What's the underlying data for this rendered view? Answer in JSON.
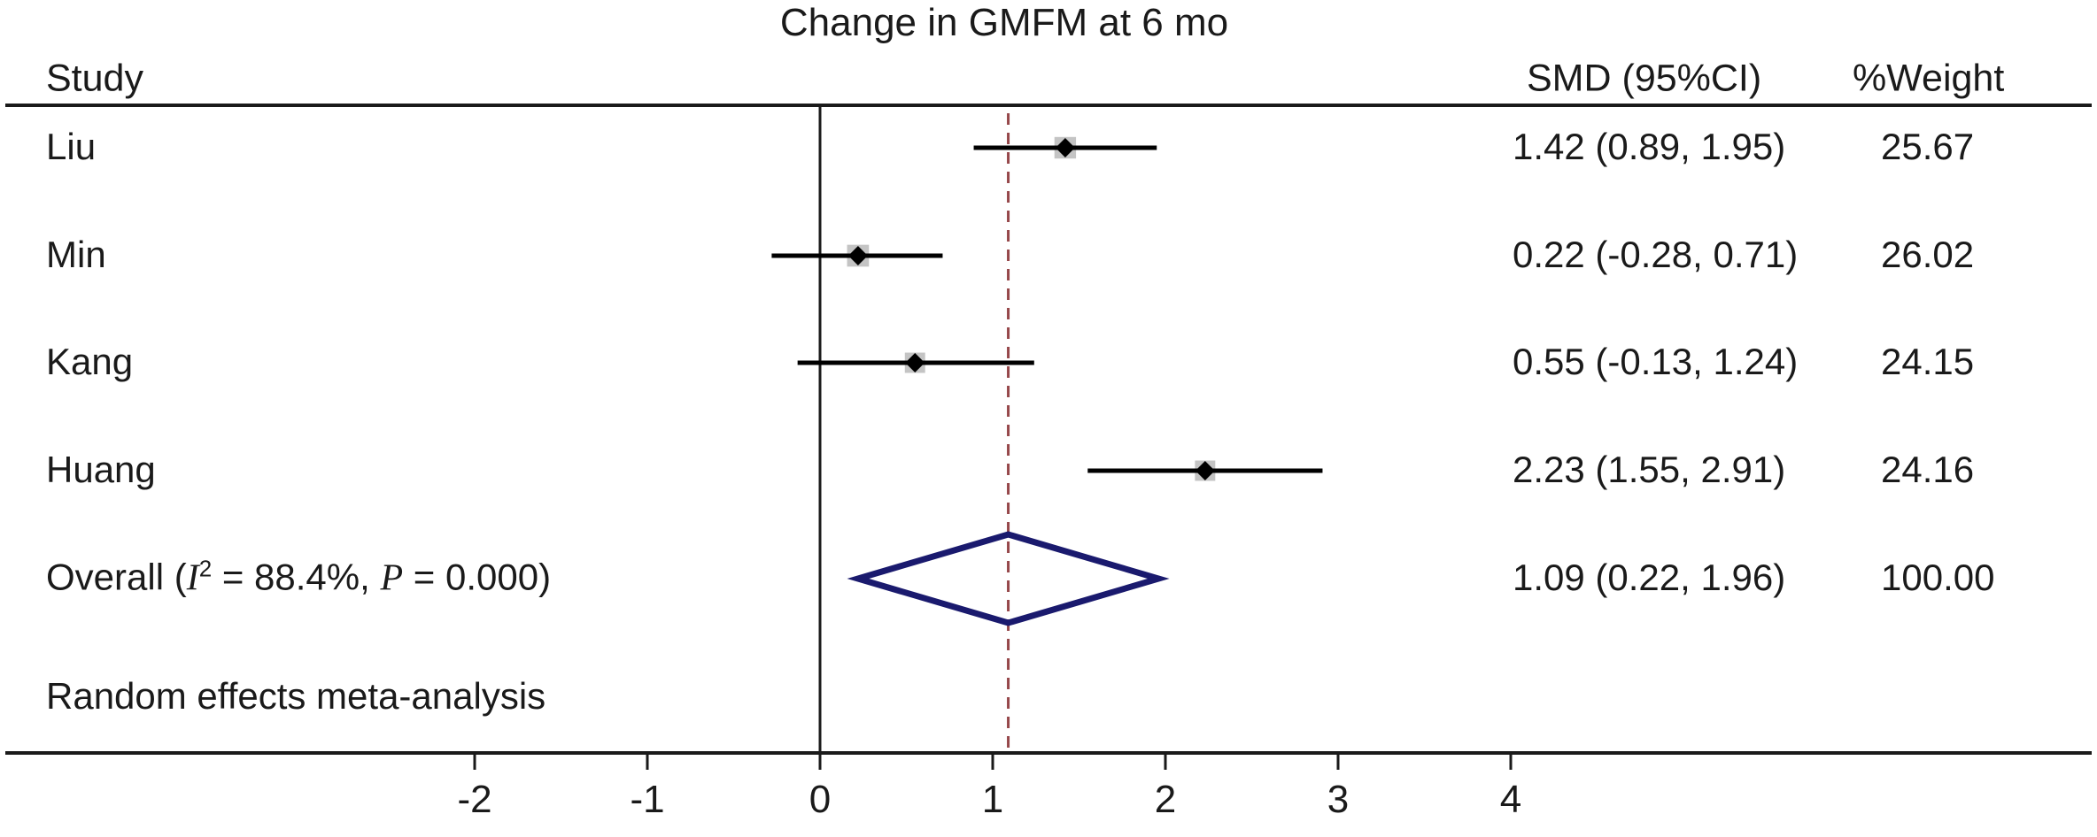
{
  "title": "Change in GMFM at 6 mo",
  "columns": {
    "study": "Study",
    "smd": "SMD (95%CI)",
    "weight": "%Weight"
  },
  "footer_note": "Random effects meta-analysis",
  "overall_label": {
    "prefix": "Overall (",
    "i_symbol": "I",
    "i_sup": "2",
    "i_rest": " = 88.4%, ",
    "p_symbol": "P",
    "p_rest": " = 0.000)"
  },
  "chart_data": {
    "type": "forest",
    "title": "Change in GMFM at 6 mo",
    "xlabel": "",
    "ylabel": "",
    "x_ticks": [
      -2,
      -1,
      0,
      1,
      2,
      3,
      4
    ],
    "x_axis_full_width": true,
    "zero_line_x": 0,
    "model_note": "Random effects meta-analysis",
    "rows": [
      {
        "study": "Liu",
        "smd": 1.42,
        "ci_low": 0.89,
        "ci_high": 1.95,
        "weight": 25.67,
        "smd_label": "1.42 (0.89, 1.95)",
        "weight_label": "25.67"
      },
      {
        "study": "Min",
        "smd": 0.22,
        "ci_low": -0.28,
        "ci_high": 0.71,
        "weight": 26.02,
        "smd_label": "0.22 (-0.28, 0.71)",
        "weight_label": "26.02"
      },
      {
        "study": "Kang",
        "smd": 0.55,
        "ci_low": -0.13,
        "ci_high": 1.24,
        "weight": 24.15,
        "smd_label": "0.55 (-0.13, 1.24)",
        "weight_label": "24.15"
      },
      {
        "study": "Huang",
        "smd": 2.23,
        "ci_low": 1.55,
        "ci_high": 2.91,
        "weight": 24.16,
        "smd_label": "2.23 (1.55, 2.91)",
        "weight_label": "24.16"
      }
    ],
    "overall": {
      "heterogeneity_i2": "88.4%",
      "heterogeneity_p": "0.000",
      "smd": 1.09,
      "ci_low": 0.22,
      "ci_high": 1.96,
      "weight": 100.0,
      "smd_label": "1.09 (0.22, 1.96)",
      "weight_label": "100.00"
    },
    "colors": {
      "axis": "#1a1a1a",
      "ci_line": "#000000",
      "marker": "#000000",
      "weight_box": "#c4c4c4",
      "diamond": "#1a1a6e",
      "overall_dashed_line": "#96474a"
    }
  }
}
